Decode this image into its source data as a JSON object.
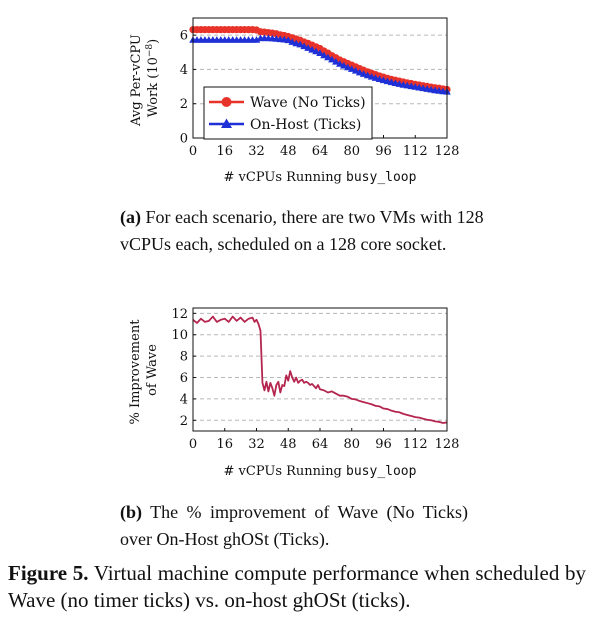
{
  "chart_data": [
    {
      "type": "line",
      "xlabel": "# vCPUs Running ",
      "xlabel_code": "busy_loop",
      "ylabel_line1": "Avg Per-vCPU",
      "ylabel_line2": "Work (10",
      "ylabel_exp": "−8",
      "ylabel_close": ")",
      "xlim": [
        0,
        128
      ],
      "ylim": [
        0,
        7
      ],
      "xticks": [
        "0",
        "16",
        "32",
        "48",
        "64",
        "80",
        "96",
        "112",
        "128"
      ],
      "yticks": [
        "0",
        "2",
        "4",
        "6"
      ],
      "grid": "horizontal dashed",
      "legend_placement": "lower-left",
      "x": [
        0,
        2,
        4,
        6,
        8,
        10,
        12,
        14,
        16,
        18,
        20,
        22,
        24,
        26,
        28,
        30,
        32,
        34,
        36,
        38,
        40,
        42,
        44,
        46,
        48,
        50,
        52,
        54,
        56,
        58,
        60,
        62,
        64,
        66,
        68,
        70,
        72,
        74,
        76,
        78,
        80,
        82,
        84,
        86,
        88,
        90,
        92,
        94,
        96,
        98,
        100,
        102,
        104,
        106,
        108,
        110,
        112,
        114,
        116,
        118,
        120,
        122,
        124,
        126,
        128
      ],
      "series": [
        {
          "name": "Wave (No Ticks)",
          "color": "#e8332a",
          "marker": "circle",
          "values": [
            6.32,
            6.32,
            6.32,
            6.32,
            6.32,
            6.32,
            6.32,
            6.32,
            6.32,
            6.32,
            6.32,
            6.32,
            6.32,
            6.32,
            6.32,
            6.32,
            6.3,
            6.2,
            6.18,
            6.15,
            6.12,
            6.08,
            6.02,
            5.98,
            5.92,
            5.85,
            5.78,
            5.7,
            5.6,
            5.52,
            5.42,
            5.32,
            5.22,
            5.08,
            4.95,
            4.8,
            4.68,
            4.55,
            4.45,
            4.35,
            4.25,
            4.15,
            4.05,
            3.95,
            3.86,
            3.78,
            3.7,
            3.62,
            3.55,
            3.48,
            3.42,
            3.37,
            3.32,
            3.27,
            3.22,
            3.18,
            3.13,
            3.09,
            3.05,
            3.01,
            2.97,
            2.93,
            2.9,
            2.86,
            2.83
          ]
        },
        {
          "name": "On-Host (Ticks)",
          "color": "#1f31d6",
          "marker": "triangle",
          "values": [
            5.72,
            5.72,
            5.72,
            5.72,
            5.72,
            5.72,
            5.72,
            5.72,
            5.72,
            5.72,
            5.72,
            5.72,
            5.72,
            5.72,
            5.72,
            5.72,
            5.72,
            5.82,
            5.82,
            5.82,
            5.8,
            5.78,
            5.76,
            5.74,
            5.7,
            5.6,
            5.52,
            5.45,
            5.35,
            5.25,
            5.15,
            5.05,
            4.95,
            4.82,
            4.7,
            4.58,
            4.45,
            4.32,
            4.22,
            4.12,
            4.02,
            3.92,
            3.82,
            3.73,
            3.65,
            3.57,
            3.5,
            3.43,
            3.37,
            3.31,
            3.25,
            3.2,
            3.15,
            3.1,
            3.06,
            3.02,
            2.98,
            2.94,
            2.9,
            2.86,
            2.82,
            2.78,
            2.75,
            2.72,
            2.7
          ]
        }
      ],
      "caption_label": "(a)",
      "caption_text": "For each scenario, there are two VMs with 128 vCPUs each, scheduled on a 128 core socket."
    },
    {
      "type": "line",
      "xlabel": "# vCPUs Running ",
      "xlabel_code": "busy_loop",
      "ylabel_line1": "% Improvement",
      "ylabel_line2": "of Wave",
      "xlim": [
        0,
        128
      ],
      "ylim": [
        1,
        12.5
      ],
      "xticks": [
        "0",
        "16",
        "32",
        "48",
        "64",
        "80",
        "96",
        "112",
        "128"
      ],
      "yticks": [
        "2",
        "4",
        "6",
        "8",
        "10",
        "12"
      ],
      "grid": "horizontal dashed",
      "series": [
        {
          "color": "#b5264f",
          "x": [
            0,
            2,
            4,
            6,
            8,
            10,
            12,
            14,
            16,
            18,
            20,
            22,
            24,
            26,
            28,
            30,
            31,
            32,
            33,
            34,
            35,
            36,
            37,
            38,
            39,
            40,
            41,
            42,
            43,
            44,
            45,
            46,
            47,
            48,
            49,
            50,
            51,
            52,
            53,
            54,
            55,
            56,
            57,
            58,
            59,
            60,
            61,
            62,
            63,
            64,
            66,
            68,
            70,
            72,
            74,
            76,
            78,
            80,
            82,
            84,
            86,
            88,
            90,
            92,
            94,
            96,
            98,
            100,
            102,
            104,
            106,
            108,
            110,
            112,
            114,
            116,
            118,
            120,
            122,
            124,
            126,
            128
          ],
          "values": [
            11.4,
            11.1,
            11.5,
            11.2,
            11.3,
            11.7,
            11.2,
            11.4,
            11.5,
            11.2,
            11.7,
            11.3,
            11.6,
            11.2,
            11.5,
            11.6,
            11.2,
            11.4,
            11.0,
            10.4,
            5.5,
            4.8,
            5.6,
            4.7,
            5.5,
            5.0,
            4.3,
            5.3,
            5.6,
            4.6,
            5.3,
            5.2,
            6.2,
            5.7,
            6.6,
            6.0,
            5.6,
            6.0,
            5.5,
            5.7,
            5.8,
            5.5,
            5.6,
            5.5,
            5.3,
            5.4,
            5.2,
            5.0,
            5.3,
            4.9,
            4.8,
            4.6,
            4.7,
            4.5,
            4.3,
            4.3,
            4.2,
            4.0,
            3.95,
            3.8,
            3.7,
            3.6,
            3.5,
            3.35,
            3.3,
            3.1,
            3.05,
            2.9,
            2.8,
            2.75,
            2.6,
            2.5,
            2.4,
            2.3,
            2.25,
            2.15,
            2.05,
            2.0,
            1.9,
            1.85,
            1.75,
            1.8
          ]
        }
      ],
      "caption_label": "(b)",
      "caption_text": "The % improvement of Wave (No Ticks) over On-Host ghOSt (Ticks)."
    }
  ],
  "figure": {
    "label": "Figure 5.",
    "text": "Virtual machine compute performance when scheduled by Wave (no timer ticks) vs. on-host ghOSt (ticks)."
  }
}
